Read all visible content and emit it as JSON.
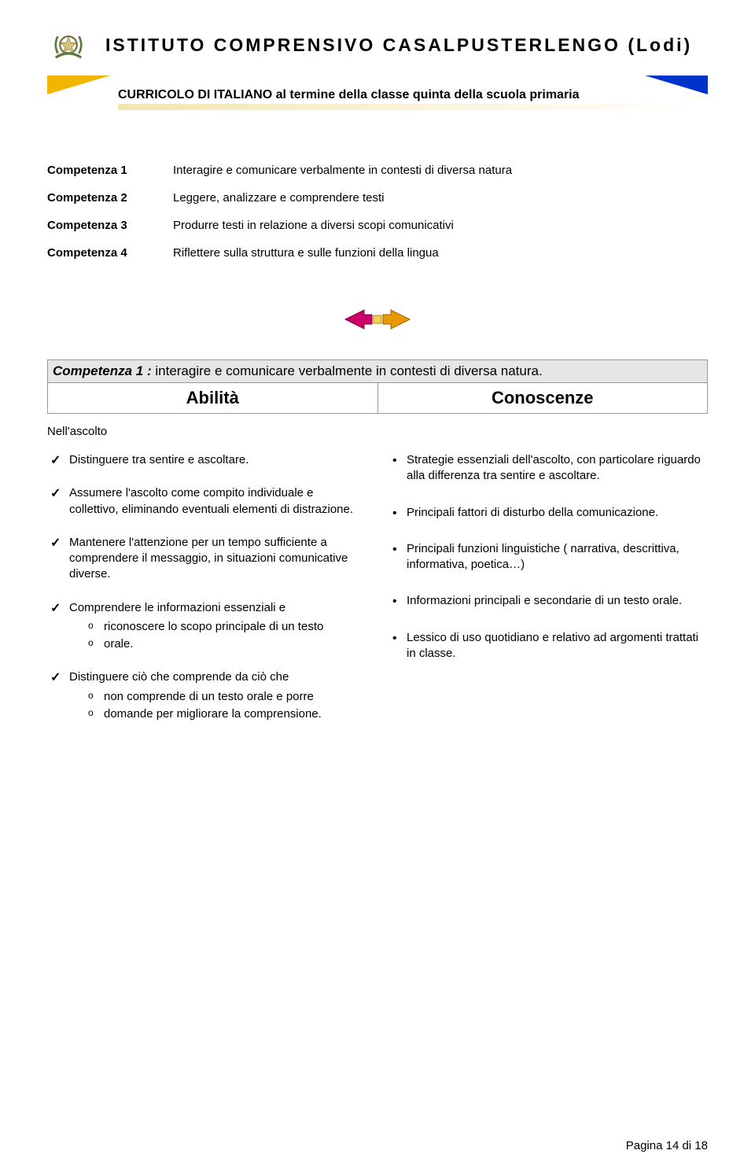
{
  "header": {
    "institution": "ISTITUTO  COMPRENSIVO  CASALPUSTERLENGO  (Lodi)"
  },
  "banner": {
    "title": "CURRICOLO DI ITALIANO al termine della classe quinta della scuola primaria",
    "left_tri_color": "#f2b600",
    "right_tri_color": "#0033cc",
    "underline_gradient_from": "#f2e6b0",
    "underline_gradient_to": "#ffffff"
  },
  "competenze": [
    {
      "label": "Competenza 1",
      "desc": "Interagire e comunicare verbalmente in contesti di diversa natura"
    },
    {
      "label": "Competenza 2",
      "desc": "Leggere, analizzare e comprendere testi"
    },
    {
      "label": "Competenza 3",
      "desc": "Produrre testi in relazione a diversi scopi comunicativi"
    },
    {
      "label": "Competenza 4",
      "desc": "Riflettere sulla struttura e sulle funzioni della lingua"
    }
  ],
  "nav": {
    "left_color": "#cc0066",
    "right_color": "#e69900",
    "center_color": "#f2d24d"
  },
  "section": {
    "title_prefix": "Competenza 1 : ",
    "title_rest": "interagire e comunicare verbalmente in contesti di diversa natura.",
    "col_left": "Abilità",
    "col_right": "Conoscenze",
    "subhead": "Nell'ascolto"
  },
  "abilita": {
    "items": [
      {
        "text": "Distinguere tra sentire e ascoltare."
      },
      {
        "text": "Assumere l'ascolto come compito individuale e collettivo, eliminando eventuali elementi di distrazione."
      },
      {
        "text": "Mantenere l'attenzione per un tempo sufficiente a comprendere il messaggio, in situazioni comunicative diverse."
      },
      {
        "text": "Comprendere le informazioni essenziali e",
        "sub": [
          "riconoscere lo scopo principale di un testo",
          "orale."
        ]
      },
      {
        "text": "Distinguere ciò che comprende da ciò che",
        "sub": [
          "non comprende di un testo orale e porre",
          "domande per migliorare la comprensione."
        ]
      }
    ]
  },
  "conoscenze": {
    "items": [
      "Strategie essenziali dell'ascolto, con particolare riguardo alla differenza tra sentire e ascoltare.",
      "Principali fattori di disturbo della comunicazione.",
      "Principali funzioni linguistiche ( narrativa, descrittiva, informativa, poetica…)",
      "Informazioni principali e secondarie di un testo orale.",
      "Lessico di uso quotidiano e relativo ad argomenti trattati in classe."
    ]
  },
  "footer": {
    "text": "Pagina 14 di 18"
  }
}
